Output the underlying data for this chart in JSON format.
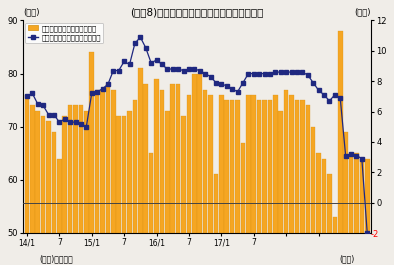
{
  "title": "(図袆8)マネタリーベース残高と前月比の推移",
  "left_ylabel": "(兆円)",
  "right_ylabel": "(兆円)",
  "xlabel_note": "(資料)日本銀行",
  "xlabel_right": "(年月)",
  "left_ylim": [
    50,
    90
  ],
  "right_ylim": [
    -2,
    12
  ],
  "left_yticks": [
    50,
    60,
    70,
    80,
    90
  ],
  "right_yticks": [
    0,
    2,
    4,
    6,
    8,
    10,
    12
  ],
  "bar_color": "#F5A623",
  "bar_edge_color": "#D49010",
  "line_color": "#1F2880",
  "line_marker": "s",
  "zero_line_color": "#444444",
  "background_color": "#f0ede8",
  "legend_bar_label": "季節調整済み前月差（右軸）",
  "legend_line_label": "マネタリーベース末残の前年差",
  "bar_data": [
    76,
    74,
    73,
    72,
    71,
    69,
    64,
    72,
    74,
    74,
    74,
    73,
    84,
    77,
    77,
    78,
    77,
    72,
    72,
    73,
    75,
    81,
    78,
    65,
    79,
    77,
    73,
    78,
    78,
    72,
    76,
    80,
    80,
    77,
    76,
    61,
    76,
    75,
    75,
    75,
    67,
    76,
    76,
    75,
    75,
    75,
    76,
    73,
    77,
    76,
    75,
    75,
    74,
    70,
    65,
    64,
    61,
    53,
    88,
    69,
    65,
    65,
    64,
    64
  ],
  "line_data": [
    7.0,
    7.2,
    6.5,
    6.4,
    5.8,
    5.8,
    5.3,
    5.5,
    5.3,
    5.3,
    5.2,
    5.0,
    7.2,
    7.3,
    7.5,
    7.8,
    8.7,
    8.7,
    9.3,
    9.1,
    10.5,
    10.9,
    10.2,
    9.2,
    9.4,
    9.1,
    8.8,
    8.8,
    8.8,
    8.7,
    8.8,
    8.8,
    8.7,
    8.5,
    8.3,
    7.9,
    7.8,
    7.7,
    7.5,
    7.3,
    7.9,
    8.5,
    8.5,
    8.5,
    8.5,
    8.5,
    8.6,
    8.6,
    8.6,
    8.6,
    8.6,
    8.6,
    8.4,
    7.9,
    7.4,
    7.1,
    6.7,
    7.1,
    6.9,
    3.1,
    3.2,
    3.1,
    2.9,
    -2.0
  ],
  "n_bars": 64,
  "xtick_positions": [
    0,
    6,
    12,
    18,
    24,
    30,
    36,
    42,
    48,
    54
  ],
  "xtick_labels": [
    "14/1",
    "7",
    "15/1",
    "7",
    "16/1",
    "7",
    "17/1",
    "7",
    "",
    ""
  ]
}
